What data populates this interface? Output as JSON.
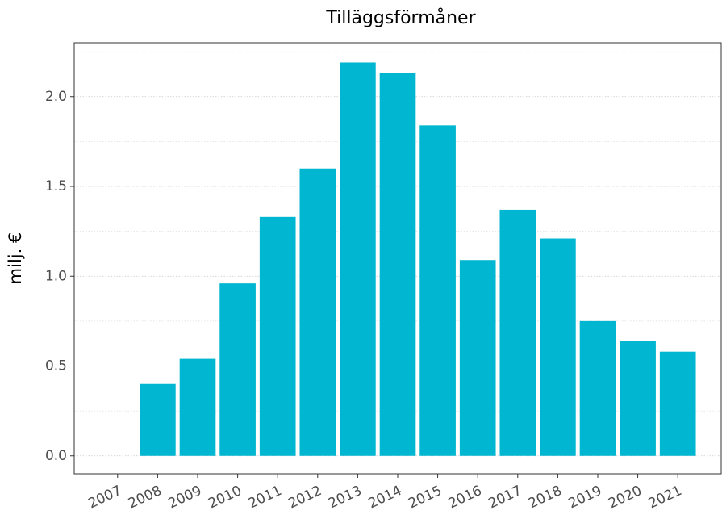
{
  "chart_data": {
    "type": "bar",
    "title": "Tilläggsförmåner",
    "ylabel": "milj. €",
    "categories": [
      "2007",
      "2008",
      "2009",
      "2010",
      "2011",
      "2012",
      "2013",
      "2014",
      "2015",
      "2016",
      "2017",
      "2018",
      "2019",
      "2020",
      "2021"
    ],
    "values": [
      null,
      0.4,
      0.54,
      0.96,
      1.33,
      1.6,
      2.19,
      2.13,
      1.84,
      1.09,
      1.37,
      1.21,
      0.75,
      0.64,
      0.58
    ],
    "color": "#00b6d0",
    "ylim": [
      -0.1,
      2.3
    ],
    "yticks": [
      {
        "value": 0,
        "label": "0.0"
      },
      0.5,
      {
        "value": 1,
        "label": "1.0"
      },
      1.5,
      {
        "value": 2,
        "label": "2.0"
      }
    ],
    "minor_yticks": [
      0.25,
      0.75,
      1.25,
      1.75,
      2.25
    ],
    "grid": true
  }
}
